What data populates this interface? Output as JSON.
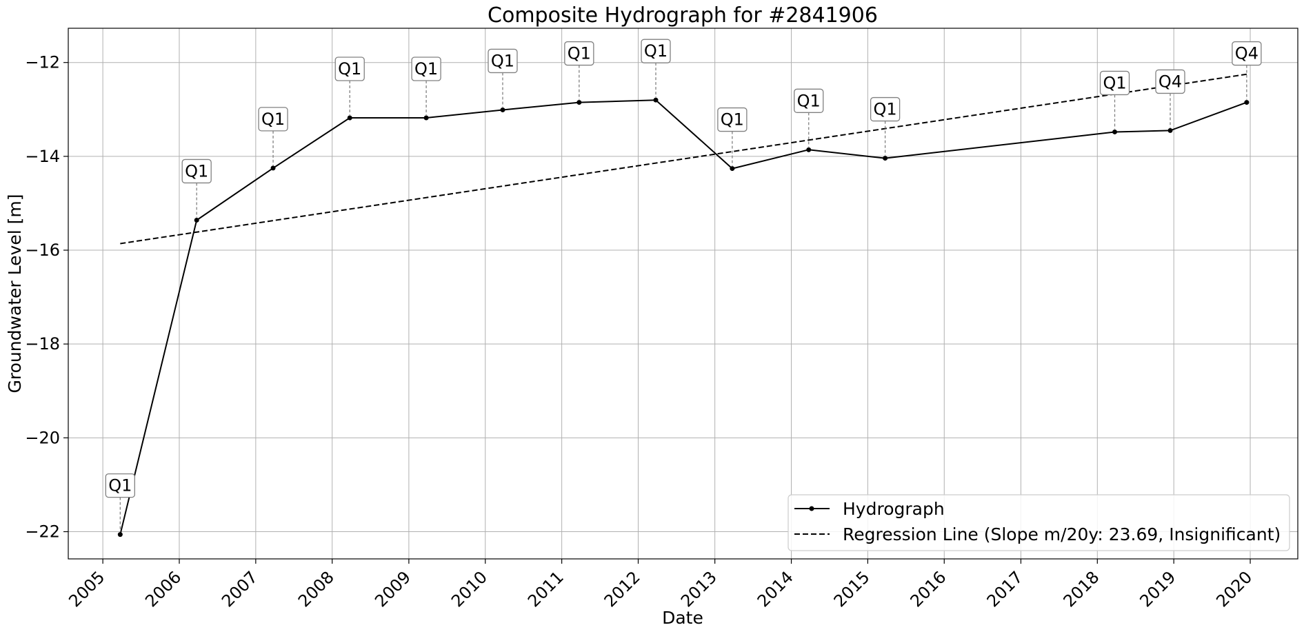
{
  "chart_data": {
    "type": "line",
    "title": "Composite Hydrograph for  #2841906",
    "xlabel": "Date",
    "ylabel": "Groundwater Level [m]",
    "x_ticks": [
      "2005",
      "2006",
      "2007",
      "2008",
      "2009",
      "2010",
      "2011",
      "2012",
      "2013",
      "2014",
      "2015",
      "2016",
      "2017",
      "2018",
      "2019",
      "2020"
    ],
    "y_ticks": [
      -22,
      -20,
      -18,
      -16,
      -14,
      -12
    ],
    "y_tick_labels": [
      "−22",
      "−20",
      "−18",
      "−16",
      "−14",
      "−12"
    ],
    "xlim": [
      "2004-07-20",
      "2020-08-15"
    ],
    "ylim": [
      -22.58,
      -11.27
    ],
    "grid": true,
    "legend_position": "lower-right",
    "series": [
      {
        "name": "Hydrograph",
        "style": "solid line with point markers",
        "color": "#000000",
        "points": [
          {
            "date": "2005-03-25",
            "y": -22.06,
            "label": "Q1"
          },
          {
            "date": "2006-03-25",
            "y": -15.36,
            "label": "Q1"
          },
          {
            "date": "2007-03-25",
            "y": -14.25,
            "label": "Q1"
          },
          {
            "date": "2008-03-25",
            "y": -13.18,
            "label": "Q1"
          },
          {
            "date": "2009-03-25",
            "y": -13.18,
            "label": "Q1"
          },
          {
            "date": "2010-03-25",
            "y": -13.01,
            "label": "Q1"
          },
          {
            "date": "2011-03-25",
            "y": -12.85,
            "label": "Q1"
          },
          {
            "date": "2012-03-25",
            "y": -12.8,
            "label": "Q1"
          },
          {
            "date": "2013-03-25",
            "y": -14.26,
            "label": "Q1"
          },
          {
            "date": "2014-03-25",
            "y": -13.86,
            "label": "Q1"
          },
          {
            "date": "2015-03-25",
            "y": -14.04,
            "label": "Q1"
          },
          {
            "date": "2018-03-25",
            "y": -13.48,
            "label": "Q1"
          },
          {
            "date": "2018-12-15",
            "y": -13.45,
            "label": "Q4"
          },
          {
            "date": "2019-12-15",
            "y": -12.85,
            "label": "Q4"
          }
        ]
      },
      {
        "name": "Regression Line (Slope m/20y: 23.69, Insignificant)",
        "style": "dashed line",
        "color": "#000000",
        "points": [
          {
            "date": "2005-03-25",
            "y": -15.86
          },
          {
            "date": "2019-12-15",
            "y": -12.25
          }
        ]
      }
    ]
  }
}
